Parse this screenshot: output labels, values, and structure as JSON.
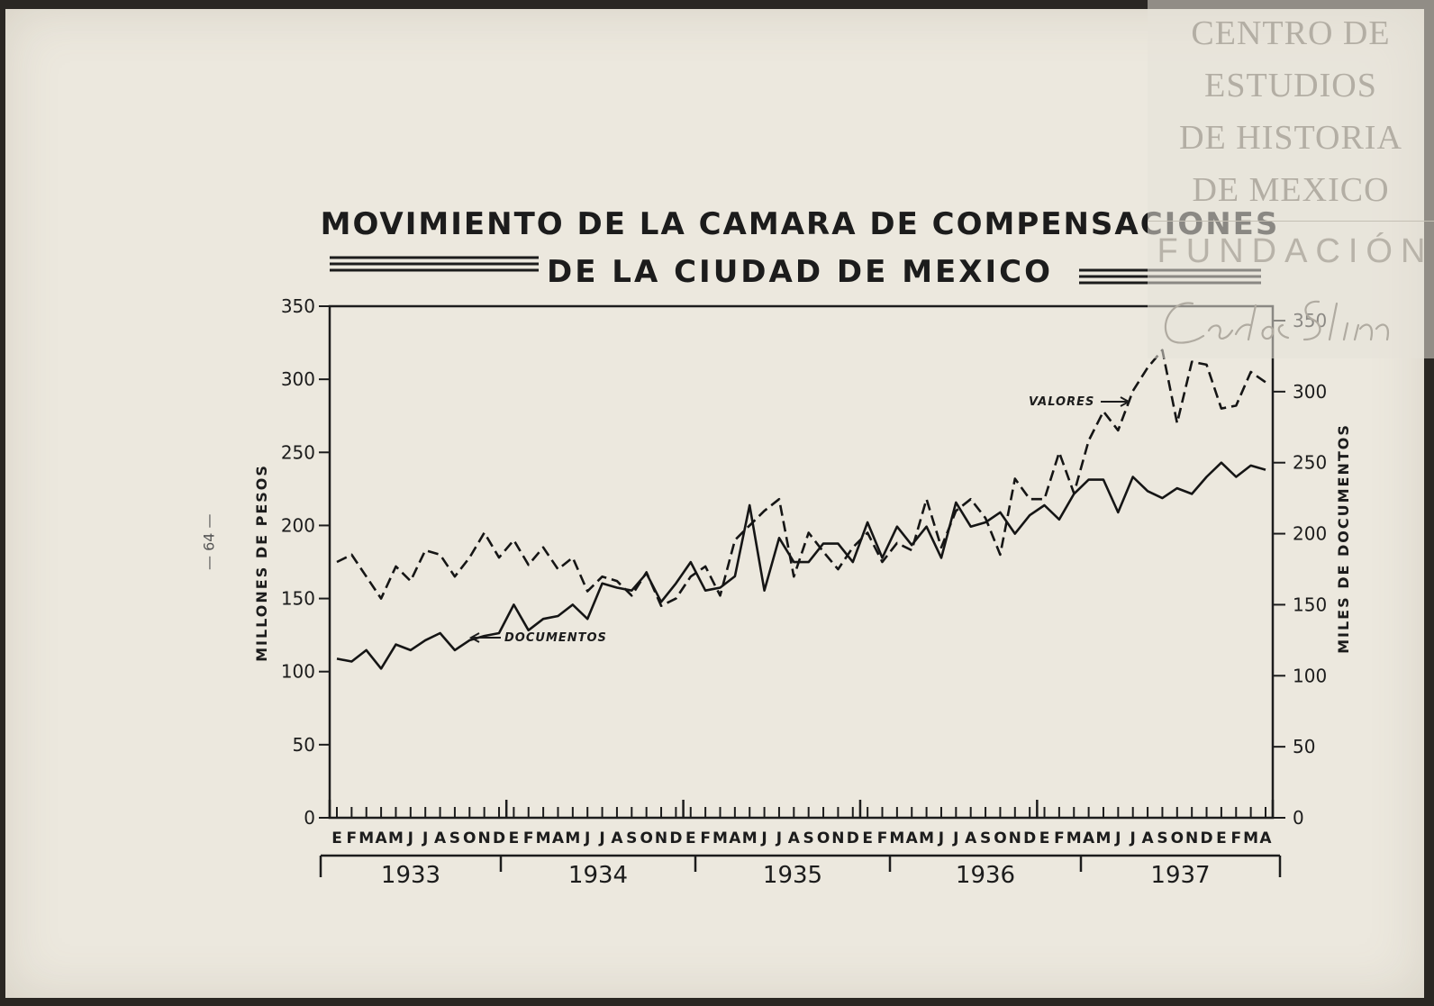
{
  "page": {
    "page_number": "— 64 —"
  },
  "watermark": {
    "lines": [
      "CENTRO DE",
      "ESTUDIOS",
      "DE HISTORIA",
      "DE MEXICO"
    ],
    "fundacion": "FUNDACIÓN",
    "signature": "Carlos Slim"
  },
  "chart_data": {
    "type": "line",
    "title": "MOVIMIENTO DE LA CAMARA DE COMPENSACIONES",
    "subtitle": "DE LA CIUDAD DE MEXICO",
    "ylabel_left": "MILLONES DE PESOS",
    "ylabel_right": "MILES DE DOCUMENTOS",
    "ylim_left": [
      0,
      350
    ],
    "ylim_right": [
      0,
      350
    ],
    "yticks_left": [
      "0",
      "50",
      "100",
      "150",
      "200",
      "250",
      "300",
      "350"
    ],
    "yticks_right": [
      "0",
      "50",
      "100",
      "150",
      "200",
      "250",
      "300",
      "350"
    ],
    "month_labels": [
      "E",
      "F",
      "M",
      "A",
      "M",
      "J",
      "J",
      "A",
      "S",
      "O",
      "N",
      "D"
    ],
    "years": [
      "1933",
      "1934",
      "1935",
      "1936",
      "1937"
    ],
    "grid": false,
    "series": [
      {
        "name": "VALORES",
        "style": "dashed",
        "axis": "left",
        "values": [
          175,
          180,
          165,
          150,
          172,
          162,
          183,
          180,
          165,
          178,
          195,
          178,
          190,
          173,
          185,
          170,
          178,
          155,
          165,
          162,
          152,
          168,
          145,
          150,
          165,
          172,
          152,
          190,
          200,
          210,
          218,
          165,
          195,
          182,
          170,
          185,
          195,
          175,
          188,
          183,
          218,
          185,
          210,
          218,
          205,
          180,
          232,
          218,
          218,
          250,
          222,
          258,
          278,
          265,
          292,
          308,
          320,
          270,
          312,
          310,
          280,
          282,
          305,
          298
        ],
        "label": "VALORES"
      },
      {
        "name": "DOCUMENTOS",
        "style": "solid",
        "axis": "right",
        "values": [
          112,
          110,
          118,
          105,
          122,
          118,
          125,
          130,
          118,
          125,
          128,
          130,
          150,
          132,
          140,
          142,
          150,
          140,
          165,
          162,
          160,
          172,
          152,
          165,
          180,
          160,
          162,
          170,
          220,
          160,
          197,
          180,
          180,
          193,
          193,
          180,
          208,
          183,
          205,
          192,
          205,
          183,
          222,
          205,
          208,
          215,
          200,
          213,
          220,
          210,
          228,
          238,
          238,
          215,
          240,
          230,
          225,
          232,
          228,
          240,
          250,
          240,
          248,
          245
        ],
        "label": "DOCUMENTOS"
      }
    ]
  }
}
